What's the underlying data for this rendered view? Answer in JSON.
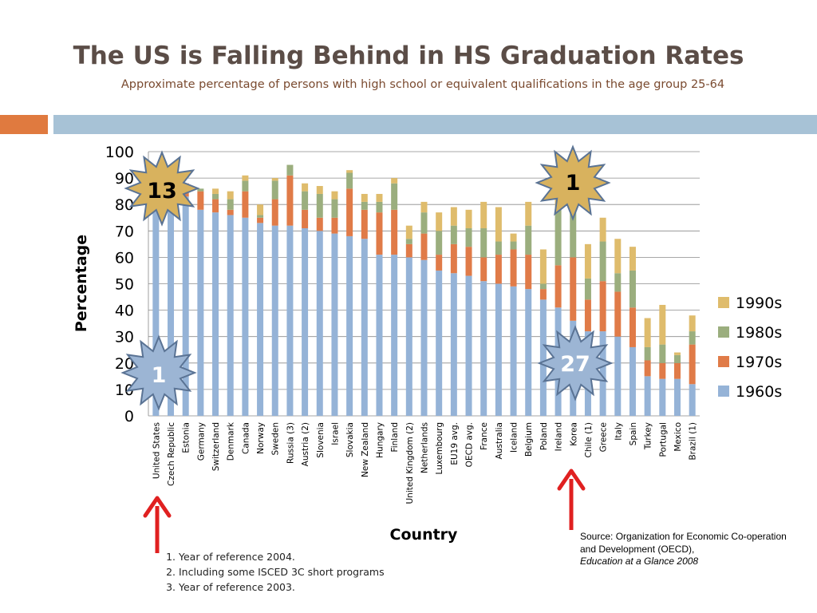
{
  "slide": {
    "title": "The US is Falling Behind in HS Graduation Rates",
    "subtitle": "Approximate percentage of persons with high school or equivalent qualifications in the age group 25-64"
  },
  "badges": [
    {
      "label": "13",
      "color": "#d8b25e",
      "name": "rank-badge-1960s-us"
    },
    {
      "label": "1",
      "color": "#d8b25e",
      "name": "rank-badge-1960s-korea"
    },
    {
      "label": "1",
      "color": "#9cb5d4",
      "name": "rank-badge-1990s-us"
    },
    {
      "label": "27",
      "color": "#9cb5d4",
      "name": "rank-badge-1990s-korea"
    }
  ],
  "footnotes": [
    "Year of reference 2004.",
    "Including some ISCED 3C short programs",
    "Year of reference 2003."
  ],
  "source": {
    "line1": "Source:  Organization for Economic Co-operation and Development (OECD),",
    "line2": "Education at a Glance 2008"
  },
  "colors": {
    "1960s": "#95b3d7",
    "1970s": "#e07b48",
    "1980s": "#9bae7e",
    "1990s": "#dfbc6c",
    "arrow": "#e02020"
  },
  "chart_data": {
    "type": "bar",
    "stacked": true,
    "xlabel": "Country",
    "ylabel": "Percentage",
    "ylim": [
      0,
      100
    ],
    "yticks": [
      0,
      10,
      20,
      30,
      40,
      50,
      60,
      70,
      80,
      90,
      100
    ],
    "grid": true,
    "legend": "right",
    "categories": [
      "United States",
      "Czech Republic",
      "Estonia",
      "Germany",
      "Switzerland",
      "Denmark",
      "Canada",
      "Norway",
      "Sweden",
      "Russia (3)",
      "Austria (2)",
      "Slovenia",
      "Israel",
      "Slovakia",
      "New Zealand",
      "Hungary",
      "Finland",
      "United Kingdom (2)",
      "Netherlands",
      "Luxembourg",
      "EU19 avg.",
      "OECD avg.",
      "France",
      "Australia",
      "Iceland",
      "Belgium",
      "Poland",
      "Ireland",
      "Korea",
      "Chile (1)",
      "Greece",
      "Italy",
      "Spain",
      "Turkey",
      "Portugal",
      "Mexico",
      "Brazil (1)"
    ],
    "series": [
      {
        "name": "1960s",
        "values": [
          87,
          86,
          83,
          78,
          77,
          76,
          75,
          73,
          72,
          72,
          71,
          70,
          69,
          68,
          67,
          61,
          61,
          60,
          59,
          55,
          54,
          53,
          51,
          50,
          49,
          48,
          44,
          41,
          36,
          32,
          32,
          30,
          26,
          15,
          14,
          14,
          12
        ]
      },
      {
        "name": "1970s",
        "values": [
          1,
          1,
          5,
          7,
          5,
          2,
          10,
          2,
          10,
          19,
          7,
          5,
          6,
          18,
          11,
          16,
          17,
          5,
          10,
          6,
          11,
          11,
          9,
          11,
          14,
          13,
          4,
          16,
          24,
          12,
          19,
          17,
          15,
          6,
          6,
          6,
          15
        ]
      },
      {
        "name": "1980s",
        "values": [
          0,
          0,
          0,
          1,
          2,
          4,
          4,
          1,
          7,
          4,
          7,
          9,
          7,
          6,
          3,
          4,
          10,
          2,
          8,
          9,
          7,
          7,
          11,
          5,
          3,
          11,
          2,
          22,
          21,
          8,
          15,
          7,
          14,
          5,
          7,
          3,
          5
        ]
      },
      {
        "name": "1990s",
        "values": [
          0,
          0,
          0,
          0,
          2,
          3,
          2,
          4,
          1,
          0,
          3,
          3,
          3,
          1,
          3,
          3,
          2,
          5,
          4,
          7,
          7,
          7,
          10,
          13,
          3,
          9,
          13,
          5,
          5,
          13,
          9,
          13,
          9,
          11,
          15,
          1,
          6
        ]
      }
    ]
  }
}
